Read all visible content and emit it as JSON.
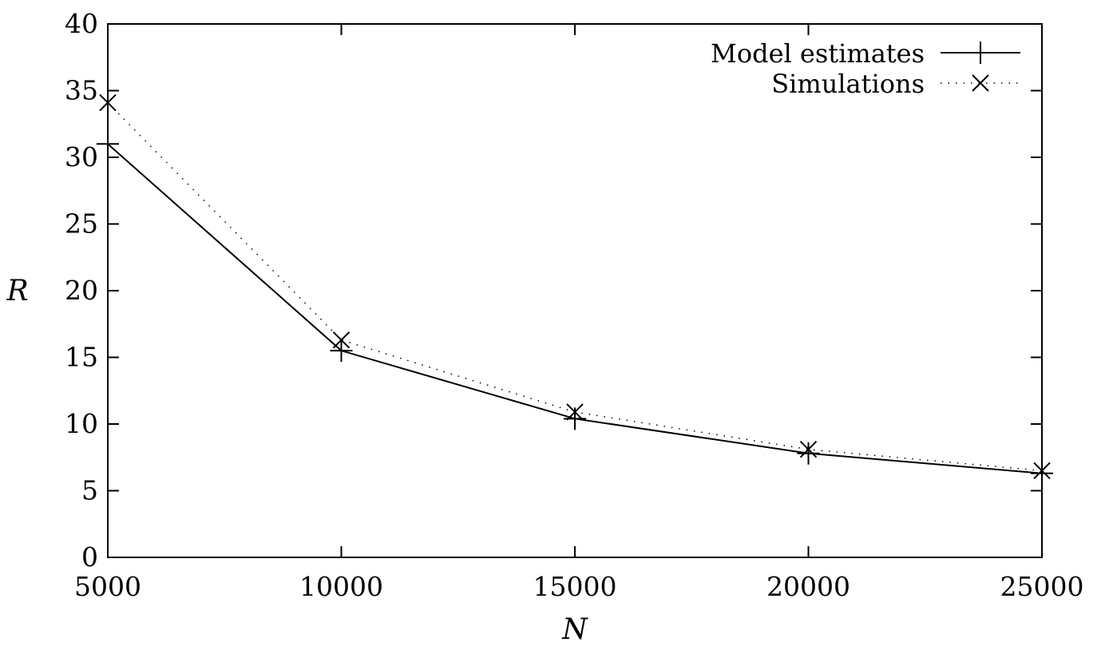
{
  "chart_data": {
    "type": "line",
    "title": "",
    "xlabel": "N",
    "ylabel": "R",
    "x": [
      5000,
      10000,
      15000,
      20000,
      25000
    ],
    "xlim": [
      5000,
      25000
    ],
    "ylim": [
      0,
      40
    ],
    "xticks": [
      5000,
      10000,
      15000,
      20000,
      25000
    ],
    "yticks": [
      0,
      5,
      10,
      15,
      20,
      25,
      30,
      35,
      40
    ],
    "xtick_labels": [
      "5000",
      "10000",
      "15000",
      "20000",
      "25000"
    ],
    "ytick_labels": [
      "0",
      "5",
      "10",
      "15",
      "20",
      "25",
      "30",
      "35",
      "40"
    ],
    "grid": false,
    "legend_position": "top-right",
    "series": [
      {
        "name": "Model estimates",
        "values": [
          31.0,
          15.5,
          10.4,
          7.8,
          6.3
        ],
        "line_style": "solid",
        "marker": "plus",
        "color": "#000000"
      },
      {
        "name": "Simulations",
        "values": [
          34.1,
          16.3,
          10.9,
          8.1,
          6.5
        ],
        "line_style": "dotted",
        "marker": "cross",
        "color": "#000000"
      }
    ]
  }
}
